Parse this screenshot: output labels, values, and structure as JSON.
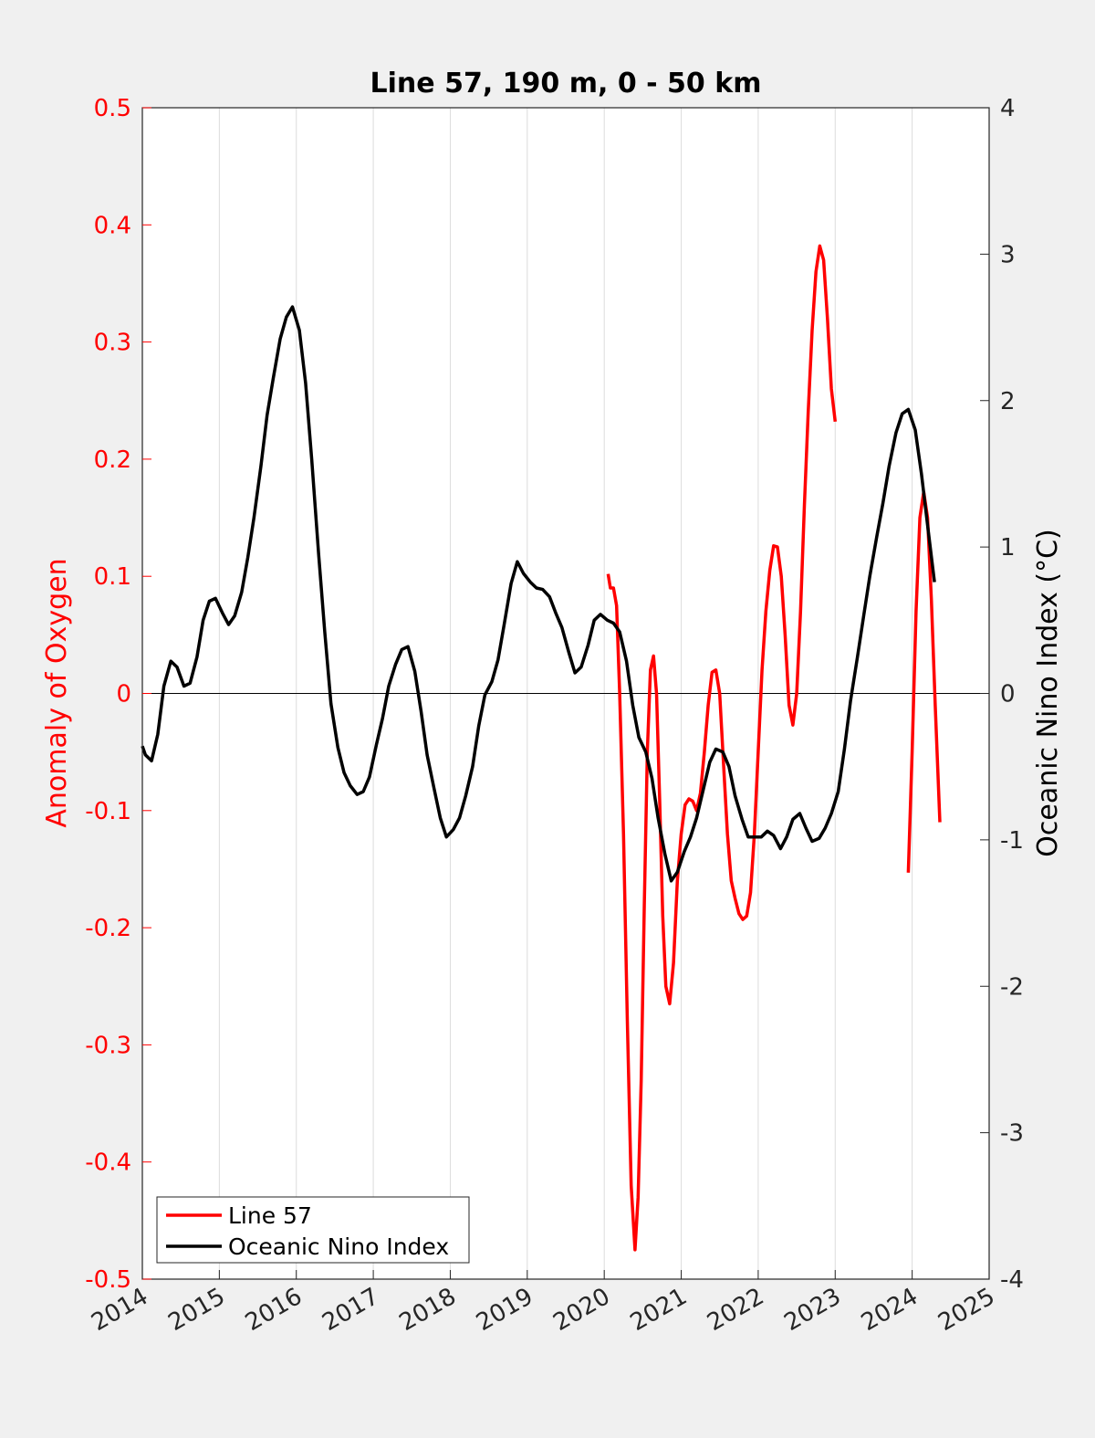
{
  "chart_data": {
    "type": "line",
    "title": "Line 57, 190 m, 0 - 50 km",
    "ylabel_left": "Anomaly of Oxygen",
    "ylabel_right": "Oceanic Nino Index (°C)",
    "xlim": [
      2014,
      2025
    ],
    "ylim_left": [
      -0.5,
      0.5
    ],
    "ylim_right": [
      -4,
      4
    ],
    "x_ticks": [
      "2014",
      "2015",
      "2016",
      "2017",
      "2018",
      "2019",
      "2020",
      "2021",
      "2022",
      "2023",
      "2024",
      "2025"
    ],
    "y_ticks_left": [
      "0.5",
      "0.4",
      "0.3",
      "0.2",
      "0.1",
      "0",
      "-0.1",
      "-0.2",
      "-0.3",
      "-0.4",
      "-0.5"
    ],
    "y_ticks_right": [
      "4",
      "3",
      "2",
      "1",
      "0",
      "-1",
      "-2",
      "-3",
      "-4"
    ],
    "grid": "vertical x-grid lines, zero reference line",
    "legend_position": "bottom-left",
    "colors": {
      "line57": "#ff0000",
      "oni": "#000000",
      "left_axis": "#ff0000"
    },
    "series": [
      {
        "name": "Line 57",
        "axis": "left",
        "color": "#ff0000",
        "segments": [
          [
            [
              2020.05,
              0.102
            ],
            [
              2020.08,
              0.09
            ],
            [
              2020.12,
              0.09
            ],
            [
              2020.16,
              0.075
            ],
            [
              2020.2,
              0.0
            ],
            [
              2020.25,
              -0.12
            ],
            [
              2020.3,
              -0.28
            ],
            [
              2020.35,
              -0.42
            ],
            [
              2020.4,
              -0.475
            ],
            [
              2020.44,
              -0.43
            ],
            [
              2020.48,
              -0.33
            ],
            [
              2020.52,
              -0.18
            ],
            [
              2020.56,
              -0.05
            ],
            [
              2020.6,
              0.02
            ],
            [
              2020.64,
              0.032
            ],
            [
              2020.68,
              0.0
            ],
            [
              2020.72,
              -0.09
            ],
            [
              2020.76,
              -0.19
            ],
            [
              2020.8,
              -0.25
            ],
            [
              2020.85,
              -0.265
            ],
            [
              2020.9,
              -0.23
            ],
            [
              2020.95,
              -0.16
            ],
            [
              2021.0,
              -0.12
            ],
            [
              2021.05,
              -0.095
            ],
            [
              2021.1,
              -0.09
            ],
            [
              2021.15,
              -0.092
            ],
            [
              2021.2,
              -0.1
            ],
            [
              2021.25,
              -0.085
            ],
            [
              2021.3,
              -0.05
            ],
            [
              2021.35,
              -0.01
            ],
            [
              2021.4,
              0.018
            ],
            [
              2021.45,
              0.02
            ],
            [
              2021.5,
              0.0
            ],
            [
              2021.55,
              -0.06
            ],
            [
              2021.6,
              -0.12
            ],
            [
              2021.65,
              -0.16
            ],
            [
              2021.7,
              -0.175
            ],
            [
              2021.75,
              -0.188
            ],
            [
              2021.8,
              -0.193
            ],
            [
              2021.85,
              -0.19
            ],
            [
              2021.9,
              -0.17
            ],
            [
              2021.95,
              -0.12
            ],
            [
              2022.0,
              -0.05
            ],
            [
              2022.05,
              0.02
            ],
            [
              2022.1,
              0.07
            ],
            [
              2022.15,
              0.105
            ],
            [
              2022.2,
              0.126
            ],
            [
              2022.25,
              0.125
            ],
            [
              2022.3,
              0.1
            ],
            [
              2022.35,
              0.05
            ],
            [
              2022.4,
              -0.01
            ],
            [
              2022.45,
              -0.027
            ],
            [
              2022.5,
              0.0
            ],
            [
              2022.55,
              0.07
            ],
            [
              2022.6,
              0.16
            ],
            [
              2022.65,
              0.24
            ],
            [
              2022.7,
              0.31
            ],
            [
              2022.75,
              0.36
            ],
            [
              2022.8,
              0.382
            ],
            [
              2022.85,
              0.37
            ],
            [
              2022.9,
              0.32
            ],
            [
              2022.95,
              0.26
            ],
            [
              2023.0,
              0.232
            ]
          ],
          [
            [
              2023.95,
              -0.153
            ],
            [
              2024.0,
              -0.05
            ],
            [
              2024.05,
              0.07
            ],
            [
              2024.1,
              0.15
            ],
            [
              2024.15,
              0.172
            ],
            [
              2024.2,
              0.15
            ],
            [
              2024.25,
              0.08
            ],
            [
              2024.3,
              -0.01
            ],
            [
              2024.36,
              -0.11
            ]
          ]
        ]
      },
      {
        "name": "Oceanic Nino Index",
        "axis": "right",
        "color": "#000000",
        "segments": [
          [
            [
              2014.0,
              -0.36
            ],
            [
              2014.04,
              -0.42
            ],
            [
              2014.12,
              -0.46
            ],
            [
              2014.2,
              -0.28
            ],
            [
              2014.28,
              0.05
            ],
            [
              2014.37,
              0.22
            ],
            [
              2014.45,
              0.18
            ],
            [
              2014.54,
              0.05
            ],
            [
              2014.62,
              0.07
            ],
            [
              2014.71,
              0.25
            ],
            [
              2014.79,
              0.5
            ],
            [
              2014.87,
              0.63
            ],
            [
              2014.95,
              0.65
            ],
            [
              2015.04,
              0.55
            ],
            [
              2015.12,
              0.47
            ],
            [
              2015.2,
              0.53
            ],
            [
              2015.29,
              0.69
            ],
            [
              2015.37,
              0.93
            ],
            [
              2015.45,
              1.2
            ],
            [
              2015.54,
              1.55
            ],
            [
              2015.62,
              1.9
            ],
            [
              2015.7,
              2.15
            ],
            [
              2015.79,
              2.42
            ],
            [
              2015.87,
              2.57
            ],
            [
              2015.95,
              2.64
            ],
            [
              2016.04,
              2.48
            ],
            [
              2016.12,
              2.12
            ],
            [
              2016.2,
              1.6
            ],
            [
              2016.29,
              0.95
            ],
            [
              2016.37,
              0.42
            ],
            [
              2016.45,
              -0.07
            ],
            [
              2016.54,
              -0.37
            ],
            [
              2016.62,
              -0.54
            ],
            [
              2016.7,
              -0.63
            ],
            [
              2016.79,
              -0.69
            ],
            [
              2016.87,
              -0.67
            ],
            [
              2016.95,
              -0.57
            ],
            [
              2017.04,
              -0.35
            ],
            [
              2017.12,
              -0.17
            ],
            [
              2017.2,
              0.05
            ],
            [
              2017.29,
              0.2
            ],
            [
              2017.37,
              0.3
            ],
            [
              2017.45,
              0.32
            ],
            [
              2017.54,
              0.15
            ],
            [
              2017.62,
              -0.12
            ],
            [
              2017.7,
              -0.42
            ],
            [
              2017.79,
              -0.65
            ],
            [
              2017.87,
              -0.85
            ],
            [
              2017.95,
              -0.98
            ],
            [
              2018.04,
              -0.93
            ],
            [
              2018.12,
              -0.85
            ],
            [
              2018.2,
              -0.7
            ],
            [
              2018.29,
              -0.5
            ],
            [
              2018.37,
              -0.22
            ],
            [
              2018.45,
              -0.01
            ],
            [
              2018.54,
              0.08
            ],
            [
              2018.62,
              0.23
            ],
            [
              2018.7,
              0.47
            ],
            [
              2018.79,
              0.75
            ],
            [
              2018.87,
              0.9
            ],
            [
              2018.95,
              0.82
            ],
            [
              2019.04,
              0.76
            ],
            [
              2019.12,
              0.72
            ],
            [
              2019.2,
              0.71
            ],
            [
              2019.29,
              0.66
            ],
            [
              2019.37,
              0.55
            ],
            [
              2019.45,
              0.45
            ],
            [
              2019.54,
              0.28
            ],
            [
              2019.62,
              0.14
            ],
            [
              2019.7,
              0.18
            ],
            [
              2019.79,
              0.33
            ],
            [
              2019.87,
              0.5
            ],
            [
              2019.95,
              0.54
            ],
            [
              2020.04,
              0.5
            ],
            [
              2020.12,
              0.48
            ],
            [
              2020.2,
              0.42
            ],
            [
              2020.29,
              0.22
            ],
            [
              2020.37,
              -0.08
            ],
            [
              2020.45,
              -0.3
            ],
            [
              2020.54,
              -0.4
            ],
            [
              2020.62,
              -0.58
            ],
            [
              2020.7,
              -0.85
            ],
            [
              2020.79,
              -1.1
            ],
            [
              2020.87,
              -1.28
            ],
            [
              2020.95,
              -1.22
            ],
            [
              2021.04,
              -1.08
            ],
            [
              2021.12,
              -0.98
            ],
            [
              2021.2,
              -0.85
            ],
            [
              2021.29,
              -0.65
            ],
            [
              2021.37,
              -0.47
            ],
            [
              2021.45,
              -0.38
            ],
            [
              2021.54,
              -0.4
            ],
            [
              2021.62,
              -0.5
            ],
            [
              2021.7,
              -0.7
            ],
            [
              2021.79,
              -0.86
            ],
            [
              2021.87,
              -0.98
            ],
            [
              2021.95,
              -0.98
            ],
            [
              2022.04,
              -0.98
            ],
            [
              2022.12,
              -0.94
            ],
            [
              2022.2,
              -0.97
            ],
            [
              2022.29,
              -1.06
            ],
            [
              2022.37,
              -0.98
            ],
            [
              2022.45,
              -0.86
            ],
            [
              2022.54,
              -0.82
            ],
            [
              2022.62,
              -0.92
            ],
            [
              2022.7,
              -1.01
            ],
            [
              2022.79,
              -0.99
            ],
            [
              2022.87,
              -0.92
            ],
            [
              2022.95,
              -0.82
            ],
            [
              2023.04,
              -0.67
            ],
            [
              2023.12,
              -0.38
            ],
            [
              2023.2,
              -0.05
            ],
            [
              2023.29,
              0.25
            ],
            [
              2023.37,
              0.53
            ],
            [
              2023.45,
              0.8
            ],
            [
              2023.54,
              1.07
            ],
            [
              2023.62,
              1.3
            ],
            [
              2023.7,
              1.55
            ],
            [
              2023.79,
              1.78
            ],
            [
              2023.87,
              1.91
            ],
            [
              2023.95,
              1.94
            ],
            [
              2024.04,
              1.8
            ],
            [
              2024.12,
              1.5
            ],
            [
              2024.2,
              1.15
            ],
            [
              2024.29,
              0.76
            ]
          ]
        ]
      }
    ]
  }
}
